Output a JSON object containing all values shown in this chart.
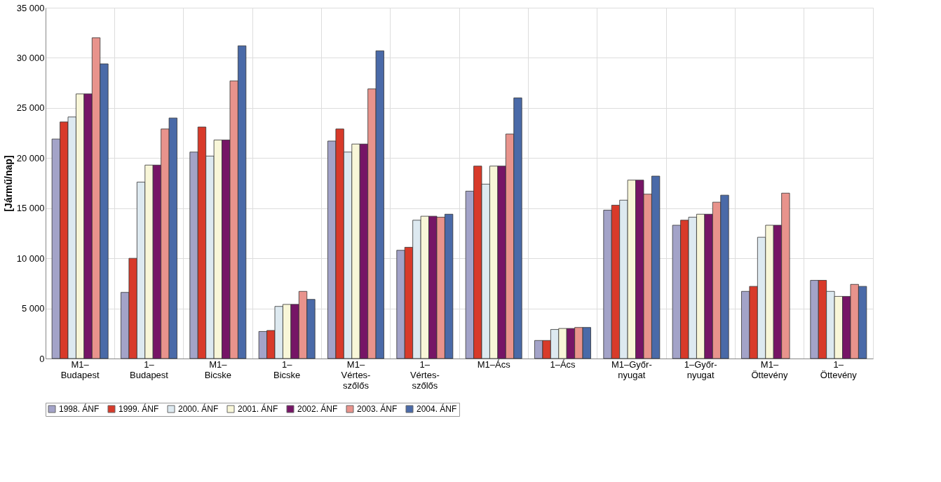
{
  "chart_data": {
    "type": "bar",
    "ylabel": "[Jármű/nap]",
    "categories": [
      "M1–\nBudapest",
      "1–\nBudapest",
      "M1–\nBicske",
      "1–\nBicske",
      "M1–\nVértes-\nszőlős",
      "1–\nVértes-\nszőlős",
      "M1–Ács",
      "1–Ács",
      "M1–Győr-\nnyugat",
      "1–Győr-\nnyugat",
      "M1–\nÖttevény",
      "1–\nÖttevény"
    ],
    "series": [
      {
        "name": "1998. ÁNF",
        "color": "#a3a3c8",
        "values": [
          21900,
          6600,
          20600,
          2700,
          21700,
          10800,
          16700,
          1800,
          14800,
          13300,
          6700,
          7800
        ]
      },
      {
        "name": "1999. ÁNF",
        "color": "#d83a2a",
        "values": [
          23600,
          10000,
          23100,
          2800,
          22900,
          11100,
          19200,
          1800,
          15300,
          13800,
          7200,
          7800
        ]
      },
      {
        "name": "2000. ÁNF",
        "color": "#dde9f0",
        "values": [
          24100,
          17600,
          20200,
          5200,
          20600,
          13800,
          17400,
          2900,
          15800,
          14100,
          12100,
          6700
        ]
      },
      {
        "name": "2001. ÁNF",
        "color": "#f8f6d8",
        "values": [
          26400,
          19300,
          21800,
          5400,
          21400,
          14200,
          19200,
          3000,
          17800,
          14400,
          13300,
          6200
        ]
      },
      {
        "name": "2002. ÁNF",
        "color": "#761566",
        "values": [
          26400,
          19300,
          21800,
          5400,
          21400,
          14200,
          19200,
          3000,
          17800,
          14400,
          13300,
          6200
        ]
      },
      {
        "name": "2003. ÁNF",
        "color": "#e8938c",
        "values": [
          32000,
          22900,
          27700,
          6700,
          26900,
          14100,
          22400,
          3100,
          16400,
          15600,
          16500,
          7400
        ]
      },
      {
        "name": "2004. ÁNF",
        "color": "#4a6aa8",
        "values": [
          29400,
          24000,
          31200,
          5900,
          30700,
          14400,
          26000,
          3100,
          18200,
          16300,
          null,
          7200
        ]
      }
    ],
    "ylim": [
      0,
      35000
    ],
    "yticks": [
      0,
      {
        "value": 5000,
        "label": "5 000"
      },
      {
        "value": 10000,
        "label": "10 000"
      },
      {
        "value": 15000,
        "label": "15 000"
      },
      {
        "value": 20000,
        "label": "20 000"
      },
      {
        "value": 25000,
        "label": "25 000"
      },
      {
        "value": 30000,
        "label": "30 000"
      },
      {
        "value": 35000,
        "label": "35 000"
      }
    ],
    "grid": true,
    "legend": "bottom"
  }
}
